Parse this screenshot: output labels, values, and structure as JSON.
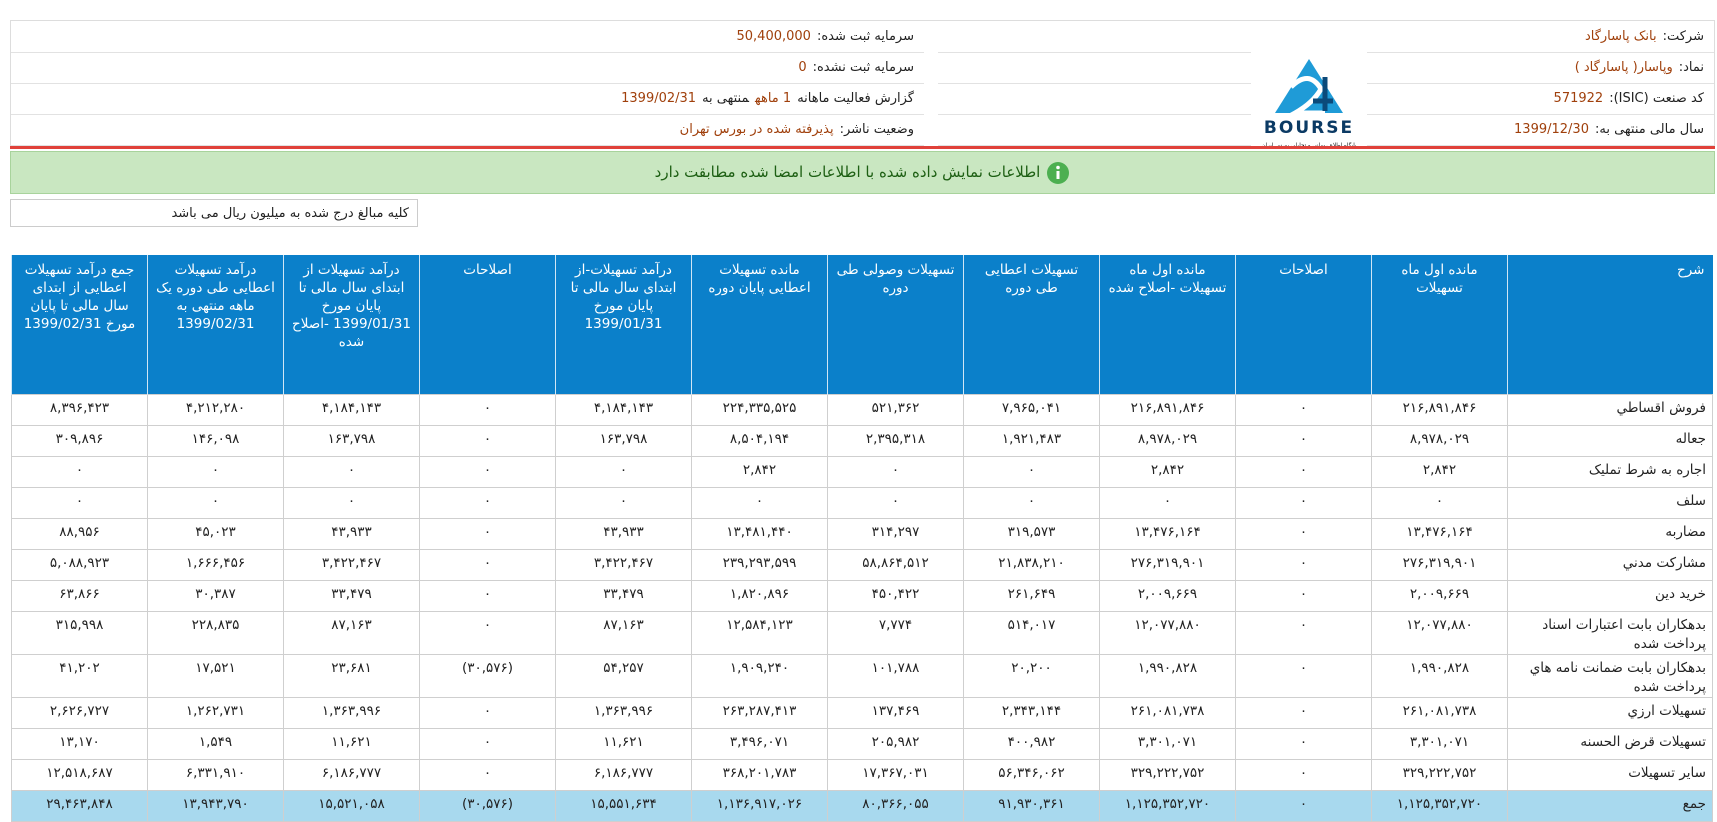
{
  "info": {
    "right": [
      {
        "label": "شرکت:",
        "value": "بانک پاسارگاد"
      },
      {
        "label": "نماد:",
        "value": "وپاسار( پاسارگاد )"
      },
      {
        "label": "کد صنعت (ISIC):",
        "value": "571922"
      },
      {
        "label": "سال مالی منتهی به:",
        "value": "1399/12/30"
      }
    ],
    "left": [
      {
        "label": "سرمایه ثبت شده:",
        "value": "50,400,000"
      },
      {
        "label": "سرمایه ثبت نشده:",
        "value": "0"
      },
      {
        "label": "گزارش فعالیت ماهانه",
        "value": "1 ماهه",
        "label2": "منتهی به",
        "value2": "1399/02/31"
      },
      {
        "label": "وضعیت ناشر:",
        "value": "پذیرفته شده در بورس تهران"
      }
    ]
  },
  "logo": {
    "title": "BOURSE",
    "subtitle": "پایگاه اطلاع رسانی و تحلیلی بورس ایران"
  },
  "notice": "اطلاعات نمایش داده شده با اطلاعات امضا شده مطابقت دارد",
  "unit_note": "کلیه مبالغ درج شده به میلیون ریال می باشد",
  "table": {
    "columns": [
      "شرح",
      "مانده اول ماه تسهیلات",
      "اصلاحات",
      "مانده اول ماه تسهیلات -اصلاح شده",
      "تسهیلات اعطایی طی دوره",
      "تسهیلات وصولی طی دوره",
      "مانده تسهیلات اعطایی پایان دوره",
      "درآمد تسهیلات-از ابتدای سال مالی تا پایان مورخ 1399/01/31",
      "اصلاحات",
      "درآمد تسهیلات از ابتدای سال مالی تا پایان مورخ 1399/01/31 -اصلاح شده",
      "درآمد تسهیلات اعطایی طی دوره یک ماهه منتهی به 1399/02/31",
      "جمع درآمد تسهیلات اعطایی از ابتدای سال مالی تا پایان مورخ 1399/02/31"
    ],
    "rows": [
      [
        "فروش اقساطي",
        "۲۱۶,۸۹۱,۸۴۶",
        "۰",
        "۲۱۶,۸۹۱,۸۴۶",
        "۷,۹۶۵,۰۴۱",
        "۵۲۱,۳۶۲",
        "۲۲۴,۳۳۵,۵۲۵",
        "۴,۱۸۴,۱۴۳",
        "۰",
        "۴,۱۸۴,۱۴۳",
        "۴,۲۱۲,۲۸۰",
        "۸,۳۹۶,۴۲۳"
      ],
      [
        "جعاله",
        "۸,۹۷۸,۰۲۹",
        "۰",
        "۸,۹۷۸,۰۲۹",
        "۱,۹۲۱,۴۸۳",
        "۲,۳۹۵,۳۱۸",
        "۸,۵۰۴,۱۹۴",
        "۱۶۳,۷۹۸",
        "۰",
        "۱۶۳,۷۹۸",
        "۱۴۶,۰۹۸",
        "۳۰۹,۸۹۶"
      ],
      [
        "اجاره به شرط تمليک",
        "۲,۸۴۲",
        "۰",
        "۲,۸۴۲",
        "۰",
        "۰",
        "۲,۸۴۲",
        "۰",
        "۰",
        "۰",
        "۰",
        "۰"
      ],
      [
        "سلف",
        "۰",
        "۰",
        "۰",
        "۰",
        "۰",
        "۰",
        "۰",
        "۰",
        "۰",
        "۰",
        "۰"
      ],
      [
        "مضاربه",
        "۱۳,۴۷۶,۱۶۴",
        "۰",
        "۱۳,۴۷۶,۱۶۴",
        "۳۱۹,۵۷۳",
        "۳۱۴,۲۹۷",
        "۱۳,۴۸۱,۴۴۰",
        "۴۳,۹۳۳",
        "۰",
        "۴۳,۹۳۳",
        "۴۵,۰۲۳",
        "۸۸,۹۵۶"
      ],
      [
        "مشاركت مدني",
        "۲۷۶,۳۱۹,۹۰۱",
        "۰",
        "۲۷۶,۳۱۹,۹۰۱",
        "۲۱,۸۳۸,۲۱۰",
        "۵۸,۸۶۴,۵۱۲",
        "۲۳۹,۲۹۳,۵۹۹",
        "۳,۴۲۲,۴۶۷",
        "۰",
        "۳,۴۲۲,۴۶۷",
        "۱,۶۶۶,۴۵۶",
        "۵,۰۸۸,۹۲۳"
      ],
      [
        "خريد دين",
        "۲,۰۰۹,۶۶۹",
        "۰",
        "۲,۰۰۹,۶۶۹",
        "۲۶۱,۶۴۹",
        "۴۵۰,۴۲۲",
        "۱,۸۲۰,۸۹۶",
        "۳۳,۴۷۹",
        "۰",
        "۳۳,۴۷۹",
        "۳۰,۳۸۷",
        "۶۳,۸۶۶"
      ],
      [
        "بدهكاران بابت اعتبارات اسناد پرداخت شده",
        "۱۲,۰۷۷,۸۸۰",
        "۰",
        "۱۲,۰۷۷,۸۸۰",
        "۵۱۴,۰۱۷",
        "۷,۷۷۴",
        "۱۲,۵۸۴,۱۲۳",
        "۸۷,۱۶۳",
        "۰",
        "۸۷,۱۶۳",
        "۲۲۸,۸۳۵",
        "۳۱۵,۹۹۸"
      ],
      [
        "بدهكاران بابت ضمانت نامه هاي پرداخت شده",
        "۱,۹۹۰,۸۲۸",
        "۰",
        "۱,۹۹۰,۸۲۸",
        "۲۰,۲۰۰",
        "۱۰۱,۷۸۸",
        "۱,۹۰۹,۲۴۰",
        "۵۴,۲۵۷",
        "(۳۰,۵۷۶)",
        "۲۳,۶۸۱",
        "۱۷,۵۲۱",
        "۴۱,۲۰۲"
      ],
      [
        "تسهيلات ارزي",
        "۲۶۱,۰۸۱,۷۳۸",
        "۰",
        "۲۶۱,۰۸۱,۷۳۸",
        "۲,۳۴۳,۱۴۴",
        "۱۳۷,۴۶۹",
        "۲۶۳,۲۸۷,۴۱۳",
        "۱,۳۶۳,۹۹۶",
        "۰",
        "۱,۳۶۳,۹۹۶",
        "۱,۲۶۲,۷۳۱",
        "۲,۶۲۶,۷۲۷"
      ],
      [
        "تسهيلات قرض الحسنه",
        "۳,۳۰۱,۰۷۱",
        "۰",
        "۳,۳۰۱,۰۷۱",
        "۴۰۰,۹۸۲",
        "۲۰۵,۹۸۲",
        "۳,۴۹۶,۰۷۱",
        "۱۱,۶۲۱",
        "۰",
        "۱۱,۶۲۱",
        "۱,۵۴۹",
        "۱۳,۱۷۰"
      ],
      [
        "ساير تسهيلات",
        "۳۲۹,۲۲۲,۷۵۲",
        "۰",
        "۳۲۹,۲۲۲,۷۵۲",
        "۵۶,۳۴۶,۰۶۲",
        "۱۷,۳۶۷,۰۳۱",
        "۳۶۸,۲۰۱,۷۸۳",
        "۶,۱۸۶,۷۷۷",
        "۰",
        "۶,۱۸۶,۷۷۷",
        "۶,۳۳۱,۹۱۰",
        "۱۲,۵۱۸,۶۸۷"
      ]
    ],
    "total": [
      "جمع",
      "۱,۱۲۵,۳۵۲,۷۲۰",
      "۰",
      "۱,۱۲۵,۳۵۲,۷۲۰",
      "۹۱,۹۳۰,۳۶۱",
      "۸۰,۳۶۶,۰۵۵",
      "۱,۱۳۶,۹۱۷,۰۲۶",
      "۱۵,۵۵۱,۶۳۴",
      "(۳۰,۵۷۶)",
      "۱۵,۵۲۱,۰۵۸",
      "۱۳,۹۴۳,۷۹۰",
      "۲۹,۴۶۳,۸۴۸"
    ]
  }
}
